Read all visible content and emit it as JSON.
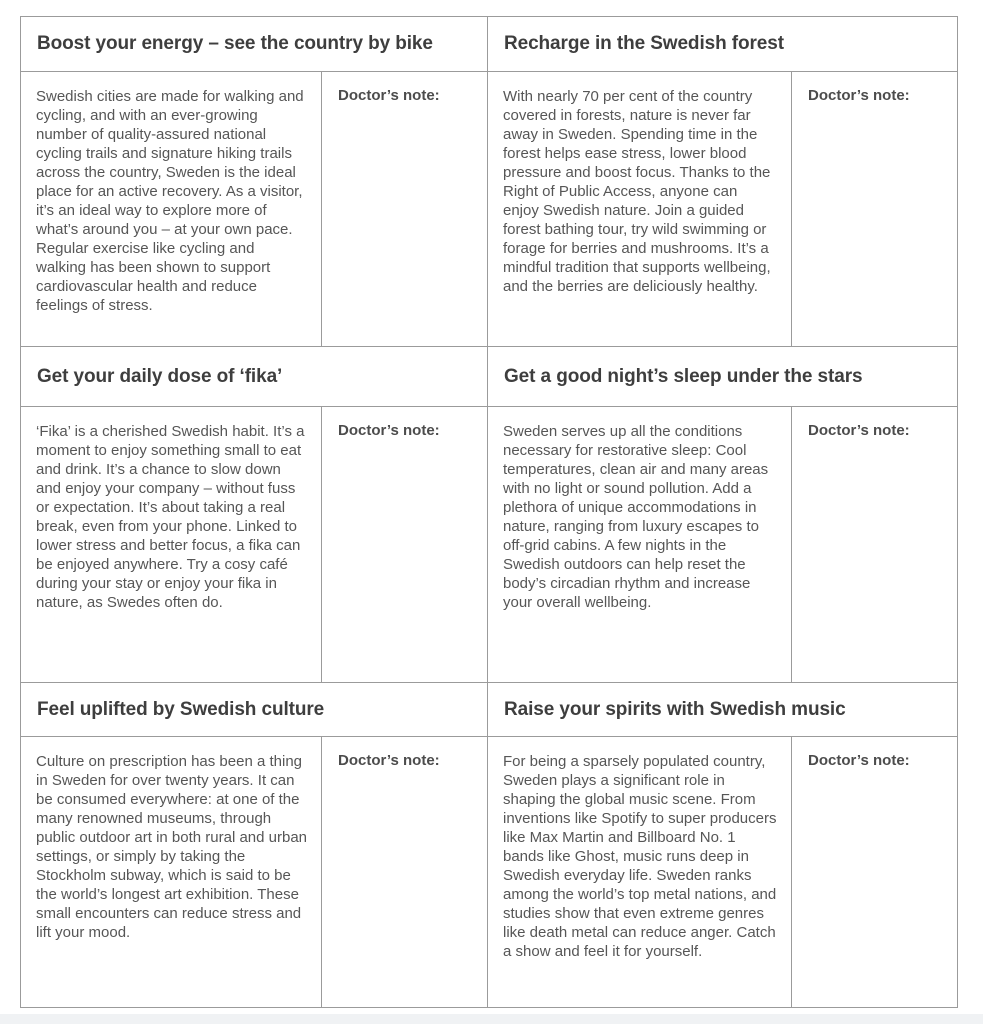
{
  "document": {
    "doctors_note_label": "Doctor’s note:",
    "sections": [
      {
        "title": "Boost your energy – see the country by bike",
        "body": "Swedish cities are made for walking and cycling, and with an ever-growing number of quality-assured national cycling trails and signature hiking trails across the country, Sweden is the ideal place for an active recovery. As a visitor, it’s an ideal way to explore more of what’s around you – at your own pace. Regular exercise like cycling and walking has been shown to support cardiovascular health and reduce feelings of stress."
      },
      {
        "title": "Recharge in the Swedish forest",
        "body": "With nearly 70 per cent of the country covered in forests, nature is never far away in Sweden. Spending time in the forest helps ease stress, lower blood pressure and boost focus. Thanks to the Right of Public Access, anyone can enjoy Swedish nature. Join a guided forest bathing tour, try wild swimming or forage for berries and mushrooms. It’s a mindful tradition that supports wellbeing, and the berries are deliciously healthy."
      },
      {
        "title": "Get your daily dose of ‘fika’",
        "body": "‘Fika’ is a cherished Swedish habit. It’s a moment to enjoy something small to eat and drink. It’s a chance to slow down and enjoy your company – without fuss or expectation. It’s about taking a real break, even from your phone. Linked to lower stress and better focus, a fika can be enjoyed anywhere. Try a cosy café during your stay or enjoy your fika in nature, as Swedes often do."
      },
      {
        "title": "Get a good night’s sleep under the stars",
        "body": "Sweden serves up all the conditions necessary for restorative sleep: Cool temperatures, clean air and many areas with no light or sound pollution. Add a plethora of unique accommodations in nature, ranging from luxury escapes to off-grid cabins. A few nights in the Swedish outdoors can help reset the body’s circadian rhythm and increase your overall wellbeing."
      },
      {
        "title": "Feel uplifted by Swedish culture",
        "body": "Culture on prescription has been a thing in Sweden for over twenty years. It can be consumed everywhere: at one of the many renowned museums, through public outdoor art in both rural and urban settings, or simply by taking the Stockholm subway, which is said to be the world’s longest art exhibition. These small encounters can reduce stress and lift your mood."
      },
      {
        "title": "Raise your spirits with Swedish music",
        "body": "For being a sparsely populated country, Sweden plays a significant role in shaping the global music scene. From inventions like Spotify to super producers like Max Martin and Billboard No. 1 bands like Ghost, music runs deep in Swedish everyday life. Sweden ranks among the world’s top metal nations, and studies show that even extreme genres like death metal can reduce anger. Catch a show and feel it for yourself."
      }
    ]
  },
  "colors": {
    "title_text": "#3e3e3e",
    "body_text": "#565656",
    "note_text": "#4c4c4c",
    "border": "#9b9b9b",
    "footer_strip": "#f0f2f4"
  }
}
